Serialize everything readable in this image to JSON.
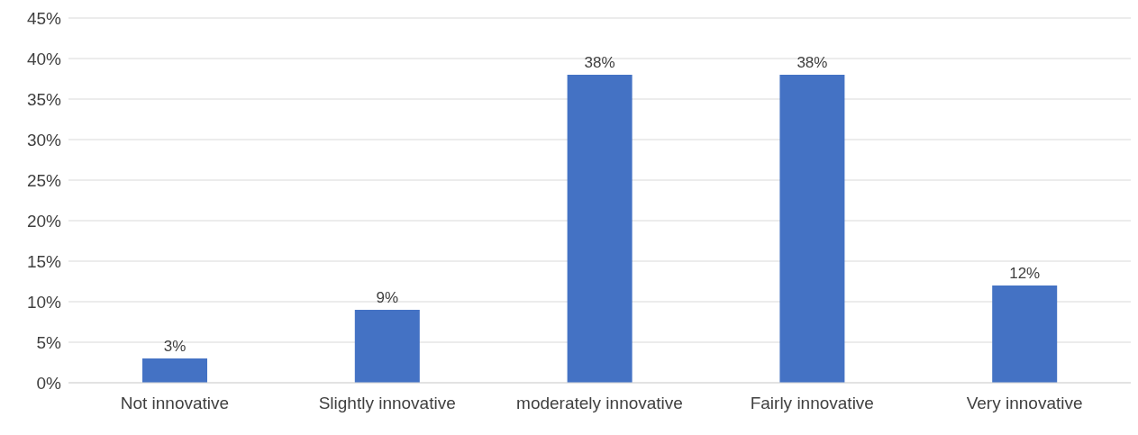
{
  "chart_data": {
    "type": "bar",
    "categories": [
      "Not innovative",
      "Slightly innovative",
      "moderately innovative",
      "Fairly innovative",
      "Very innovative"
    ],
    "values": [
      3,
      9,
      38,
      38,
      12
    ],
    "value_labels": [
      "3%",
      "9%",
      "38%",
      "38%",
      "12%"
    ],
    "color": "#4472c4",
    "ylim": [
      0,
      45
    ],
    "yticks": [
      {
        "value": 0,
        "label": "0%"
      },
      {
        "value": 5,
        "label": "5%"
      },
      {
        "value": 10,
        "label": "10%"
      },
      {
        "value": 15,
        "label": "15%"
      },
      {
        "value": 20,
        "label": "20%"
      },
      {
        "value": 25,
        "label": "25%"
      },
      {
        "value": 30,
        "label": "30%"
      },
      {
        "value": 35,
        "label": "35%"
      },
      {
        "value": 40,
        "label": "40%"
      },
      {
        "value": 45,
        "label": "45%"
      }
    ],
    "grid": "y",
    "legend": false
  }
}
